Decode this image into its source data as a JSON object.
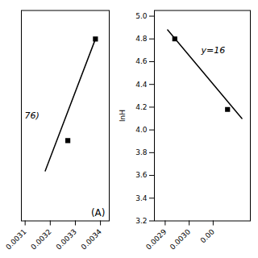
{
  "chart_data": [
    {
      "type": "scatter",
      "annotations": [
        {
          "text": "76)"
        },
        {
          "text": "(A)"
        }
      ],
      "series": [
        {
          "type": "line",
          "color": "#000000",
          "x": [
            0.00318,
            0.00338
          ],
          "values": [
            4.18,
            4.92
          ]
        },
        {
          "type": "scatter",
          "marker": "square",
          "color": "#000000",
          "x": [
            0.00327,
            0.00338
          ],
          "values": [
            4.35,
            4.92
          ]
        }
      ],
      "xlim": [
        0.003085,
        0.003435
      ],
      "ylim": [
        3.9,
        5.08
      ],
      "xticks": [
        0.0031,
        0.0032,
        0.0033,
        0.0034
      ],
      "tick_labels": "x"
    },
    {
      "type": "scatter",
      "ylabel": "lnH",
      "annotations": [
        {
          "text": "y=16",
          "x": 0.00305,
          "y": 4.7
        }
      ],
      "series": [
        {
          "type": "line",
          "color": "#000000",
          "x": [
            0.00291,
            0.00322
          ],
          "values": [
            4.88,
            4.1
          ]
        },
        {
          "type": "scatter",
          "marker": "square",
          "color": "#000000",
          "x": [
            0.00294,
            0.00316
          ],
          "values": [
            4.8,
            4.18
          ]
        }
      ],
      "xlim": [
        0.002855,
        0.003255
      ],
      "ylim": [
        3.2,
        5.05
      ],
      "xticks": [
        0.0029,
        {
          "value": 0.003,
          "label": "0.0030"
        },
        {
          "value": 0.0031,
          "label": "0.00"
        }
      ],
      "yticks": [
        3.2,
        3.4,
        3.6,
        3.8,
        {
          "value": 4,
          "label": "4.0"
        },
        4.2,
        4.4,
        4.6,
        4.8,
        {
          "value": 5,
          "label": "5.0"
        }
      ]
    }
  ]
}
